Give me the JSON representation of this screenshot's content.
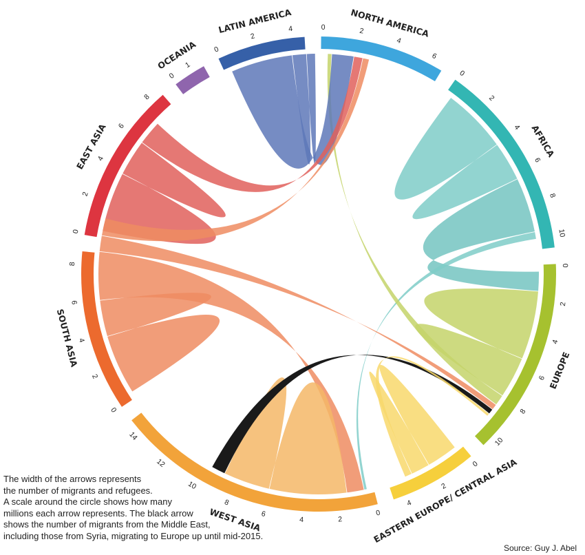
{
  "chart_data": {
    "type": "chord",
    "unit": "millions",
    "regions": [
      {
        "name": "NORTH AMERICA",
        "color": "#3ea6dd",
        "ticks": [
          "0",
          "2",
          "4",
          "6"
        ]
      },
      {
        "name": "AFRICA",
        "color": "#33b6b3",
        "ticks": [
          "0",
          "2",
          "4",
          "6",
          "8",
          "10"
        ]
      },
      {
        "name": "EUROPE",
        "color": "#a6c12f",
        "ticks": [
          "0",
          "2",
          "4",
          "6",
          "8",
          "10"
        ]
      },
      {
        "name": "EASTERN EUROPE/ CENTRAL ASIA",
        "color": "#f6cf3c",
        "ticks": [
          "0",
          "2",
          "4"
        ]
      },
      {
        "name": "WEST ASIA",
        "color": "#f2a33a",
        "ticks": [
          "0",
          "2",
          "4",
          "6",
          "8",
          "10",
          "12",
          "14"
        ]
      },
      {
        "name": "SOUTH ASIA",
        "color": "#ec6a2e",
        "ticks": [
          "0",
          "2",
          "4",
          "6",
          "8"
        ]
      },
      {
        "name": "EAST ASIA",
        "color": "#dd3540",
        "ticks": [
          "0",
          "2",
          "4",
          "6",
          "8"
        ]
      },
      {
        "name": "OCEANIA",
        "color": "#8f65ad",
        "ticks": [
          "0",
          "1"
        ]
      },
      {
        "name": "LATIN AMERICA",
        "color": "#3660a8",
        "ticks": [
          "0",
          "2",
          "4"
        ]
      }
    ],
    "flows": [
      {
        "from": "AFRICA",
        "to": "AFRICA",
        "value": 3.8,
        "color": "#7fccc8"
      },
      {
        "from": "AFRICA",
        "to": "EUROPE",
        "value": 3.2,
        "color": "#74c4c1"
      },
      {
        "from": "AFRICA",
        "to": "WEST ASIA",
        "value": 0.4,
        "color": "#7fccc8"
      },
      {
        "from": "EUROPE",
        "to": "EUROPE",
        "value": 4.0,
        "color": "#c4d46a"
      },
      {
        "from": "EUROPE",
        "to": "NORTH AMERICA",
        "value": 0.6,
        "color": "#c4d46a"
      },
      {
        "from": "LATIN AMERICA",
        "to": "NORTH AMERICA",
        "value": 3.6,
        "color": "#5e78b8"
      },
      {
        "from": "LATIN AMERICA",
        "to": "LATIN AMERICA",
        "value": 0.8,
        "color": "#5e78b8"
      },
      {
        "from": "EAST ASIA",
        "to": "EAST ASIA",
        "value": 3.5,
        "color": "#e0605c"
      },
      {
        "from": "EAST ASIA",
        "to": "NORTH AMERICA",
        "value": 1.4,
        "color": "#e0605c"
      },
      {
        "from": "SOUTH ASIA",
        "to": "SOUTH ASIA",
        "value": 3.5,
        "color": "#ef8c62"
      },
      {
        "from": "SOUTH ASIA",
        "to": "WEST ASIA",
        "value": 2.8,
        "color": "#ef8c62"
      },
      {
        "from": "SOUTH ASIA",
        "to": "EUROPE",
        "value": 0.9,
        "color": "#ef8c62"
      },
      {
        "from": "SOUTH ASIA",
        "to": "NORTH AMERICA",
        "value": 1.0,
        "color": "#ef8c62"
      },
      {
        "from": "WEST ASIA",
        "to": "WEST ASIA",
        "value": 4.5,
        "color": "#f5b767"
      },
      {
        "from": "WEST ASIA",
        "to": "EUROPE",
        "value": 0.8,
        "color": "#1a1a1a"
      },
      {
        "from": "EASTERN EUROPE/ CENTRAL ASIA",
        "to": "EASTERN EUROPE/ CENTRAL ASIA",
        "value": 1.8,
        "color": "#f8d86c"
      },
      {
        "from": "EASTERN EUROPE/ CENTRAL ASIA",
        "to": "EUROPE",
        "value": 0.4,
        "color": "#f8d86c"
      }
    ]
  },
  "caption": [
    "The width of the arrows represents",
    "the number of migrants and refugees.",
    "A scale around the circle shows how many",
    "millions each arrow represents. The black arrow",
    "shows the number of migrants from the Middle East,",
    "including those from Syria, migrating to Europe up until mid-2015."
  ],
  "source": "Source: Guy J. Abel"
}
